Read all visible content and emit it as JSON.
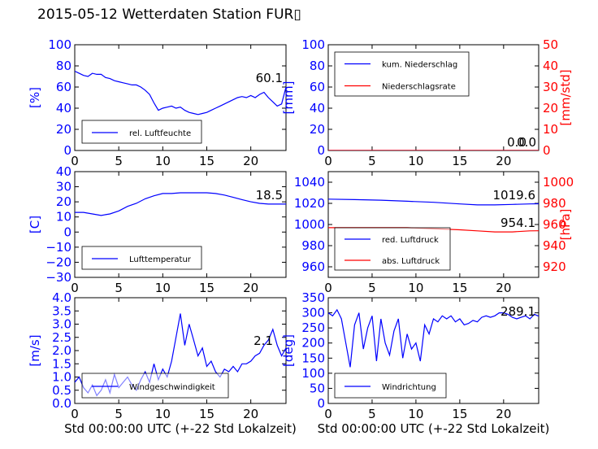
{
  "title": "2015-05-12 Wetterdaten Station FUR▯",
  "colors": {
    "blue": "#0000ff",
    "red": "#ff0000",
    "black": "#000000",
    "lightblue": "#8080ff"
  },
  "chart_data": [
    {
      "type": "line",
      "xlim": [
        0,
        24
      ],
      "x_ticks": [
        "0",
        "5",
        "10",
        "15",
        "20"
      ],
      "ylim": [
        0,
        100
      ],
      "y_ticks": [
        "0",
        "20",
        "40",
        "60",
        "80",
        "100"
      ],
      "ylabel": "[%]",
      "ylabel_color": "#0000ff",
      "series": [
        {
          "name": "rel. Luftfeuchte",
          "color": "#0000ff",
          "x": [
            0,
            0.5,
            1,
            1.5,
            2,
            2.5,
            3,
            3.5,
            4,
            4.5,
            5,
            5.5,
            6,
            6.5,
            7,
            7.5,
            8,
            8.5,
            9,
            9.5,
            10,
            10.5,
            11,
            11.5,
            12,
            12.5,
            13,
            13.5,
            14,
            14.5,
            15,
            15.5,
            16,
            16.5,
            17,
            17.5,
            18,
            18.5,
            19,
            19.5,
            20,
            20.5,
            21,
            21.5,
            22,
            22.5,
            23,
            23.5,
            24
          ],
          "y": [
            75,
            73,
            71,
            70,
            73,
            72,
            72,
            69,
            68,
            66,
            65,
            64,
            63,
            62,
            62,
            60,
            57,
            53,
            45,
            38,
            40,
            41,
            42,
            40,
            41,
            38,
            36,
            35,
            34,
            35,
            36,
            38,
            40,
            42,
            44,
            46,
            48,
            50,
            51,
            50,
            52,
            50,
            53,
            55,
            50,
            46,
            42,
            44,
            60
          ]
        }
      ],
      "legend": {
        "position": "lower-left"
      },
      "annotations": [
        "60.1"
      ]
    },
    {
      "type": "line",
      "xlim": [
        0,
        24
      ],
      "x_ticks": [
        "0",
        "5",
        "10",
        "15",
        "20"
      ],
      "ylim": [
        0,
        100
      ],
      "y_ticks": [
        "0",
        "20",
        "40",
        "60",
        "80",
        "100"
      ],
      "ylabel": "[mm]",
      "ylabel_color": "#0000ff",
      "y2lim": [
        0,
        50
      ],
      "y2_ticks": [
        "0",
        "10",
        "20",
        "30",
        "40",
        "50"
      ],
      "y2label": "[mm/std]",
      "y2label_color": "#ff0000",
      "series": [
        {
          "name": "kum. Niederschlag",
          "color": "#0000ff",
          "axis": "left",
          "x": [
            0,
            24
          ],
          "y": [
            0,
            0
          ]
        },
        {
          "name": "Niederschlagsrate",
          "color": "#ff0000",
          "axis": "right",
          "x": [
            0,
            24
          ],
          "y": [
            0,
            0
          ]
        }
      ],
      "legend": {
        "position": "upper-left"
      },
      "annotations": [
        "0.0",
        "0.0"
      ]
    },
    {
      "type": "line",
      "xlim": [
        0,
        24
      ],
      "x_ticks": [
        "0",
        "5",
        "10",
        "15",
        "20"
      ],
      "ylim": [
        -30,
        40
      ],
      "y_ticks": [
        "−30",
        "−20",
        "−10",
        "0",
        "10",
        "20",
        "30",
        "40"
      ],
      "ylabel": "[C]",
      "ylabel_color": "#0000ff",
      "series": [
        {
          "name": "Lufttemperatur",
          "color": "#0000ff",
          "x": [
            0,
            1,
            2,
            3,
            3.5,
            4,
            5,
            6,
            7,
            8,
            9,
            10,
            11,
            12,
            13,
            14,
            15,
            16,
            17,
            18,
            19,
            20,
            21,
            22,
            23,
            24
          ],
          "y": [
            13,
            13,
            12,
            11,
            11.5,
            12,
            14,
            17,
            19,
            22,
            24,
            25.5,
            25.5,
            26,
            26,
            26,
            26,
            25.5,
            24.5,
            23,
            21.5,
            20,
            19,
            18.5,
            18.5,
            18.5
          ]
        }
      ],
      "legend": {
        "position": "lower-left"
      },
      "annotations": [
        "18.5"
      ]
    },
    {
      "type": "line",
      "xlim": [
        0,
        24
      ],
      "x_ticks": [
        "0",
        "5",
        "10",
        "15",
        "20"
      ],
      "ylim": [
        950,
        1050
      ],
      "y_ticks": [
        "960",
        "980",
        "1000",
        "1020",
        "1040"
      ],
      "y2lim": [
        910,
        1010
      ],
      "y2_ticks": [
        "920",
        "940",
        "960",
        "980",
        "1000"
      ],
      "y2label": "[hPa]",
      "y2label_color": "#ff0000",
      "series": [
        {
          "name": "red. Luftdruck",
          "color": "#0000ff",
          "axis": "left",
          "x": [
            0,
            3,
            6,
            9,
            12,
            15,
            17,
            19,
            21,
            23,
            24
          ],
          "y": [
            1024,
            1023.5,
            1023,
            1022,
            1021,
            1019.5,
            1018.5,
            1018.5,
            1019,
            1019.5,
            1019.6
          ]
        },
        {
          "name": "abs. Luftdruck",
          "color": "#ff0000",
          "axis": "right",
          "x": [
            0,
            3,
            6,
            9,
            12,
            15,
            17,
            19,
            21,
            23,
            24
          ],
          "y": [
            957,
            957,
            957,
            957,
            956,
            955,
            954,
            953,
            953,
            954,
            954.1
          ]
        }
      ],
      "legend": {
        "position": "lower-left"
      },
      "annotations": [
        "1019.6",
        "954.1"
      ]
    },
    {
      "type": "line",
      "xlim": [
        0,
        24
      ],
      "x_ticks": [
        "0",
        "5",
        "10",
        "15",
        "20"
      ],
      "xlabel": "Std 00:00:00 UTC (+-22 Std Lokalzeit)",
      "ylim": [
        0,
        4.0
      ],
      "y_ticks": [
        "0.0",
        "0.5",
        "1.0",
        "1.5",
        "2.0",
        "2.5",
        "3.0",
        "3.5",
        "4.0"
      ],
      "ylabel": "[m/s]",
      "ylabel_color": "#0000ff",
      "series": [
        {
          "name": "Windgeschwindigkeit",
          "color": "#0000ff",
          "x": [
            0,
            0.5,
            1,
            1.5,
            2,
            2.5,
            3,
            3.5,
            4,
            4.5,
            5,
            5.5,
            6,
            6.5,
            7,
            7.5,
            8,
            8.5,
            9,
            9.5,
            10,
            10.5,
            11,
            11.5,
            12,
            12.5,
            13,
            13.5,
            14,
            14.5,
            15,
            15.5,
            16,
            16.5,
            17,
            17.5,
            18,
            18.5,
            19,
            19.5,
            20,
            20.5,
            21,
            21.5,
            22,
            22.5,
            23,
            23.5,
            24
          ],
          "y": [
            0.8,
            1.0,
            0.6,
            0.4,
            0.7,
            0.3,
            0.5,
            0.9,
            0.4,
            1.1,
            0.6,
            0.8,
            1.0,
            0.7,
            0.5,
            0.9,
            1.2,
            0.8,
            1.5,
            0.9,
            1.3,
            1.0,
            1.6,
            2.5,
            3.4,
            2.2,
            3.0,
            2.4,
            1.8,
            2.1,
            1.4,
            1.6,
            1.2,
            1.0,
            1.3,
            1.2,
            1.4,
            1.2,
            1.5,
            1.5,
            1.6,
            1.8,
            1.9,
            2.2,
            2.4,
            2.8,
            2.2,
            1.8,
            2.1
          ]
        }
      ],
      "legend": {
        "position": "lower-left"
      },
      "annotations": [
        "2.1"
      ]
    },
    {
      "type": "line",
      "xlim": [
        0,
        24
      ],
      "x_ticks": [
        "0",
        "5",
        "10",
        "15",
        "20"
      ],
      "xlabel": "Std 00:00:00 UTC (+-22 Std Lokalzeit)",
      "ylim": [
        0,
        350
      ],
      "y_ticks": [
        "0",
        "50",
        "100",
        "150",
        "200",
        "250",
        "300",
        "350"
      ],
      "ylabel": "[deg]",
      "ylabel_color": "#0000ff",
      "series": [
        {
          "name": "Windrichtung",
          "color": "#0000ff",
          "x": [
            0,
            0.5,
            1,
            1.5,
            2,
            2.5,
            3,
            3.5,
            4,
            4.5,
            5,
            5.5,
            6,
            6.5,
            7,
            7.5,
            8,
            8.5,
            9,
            9.5,
            10,
            10.5,
            11,
            11.5,
            12,
            12.5,
            13,
            13.5,
            14,
            14.5,
            15,
            15.5,
            16,
            16.5,
            17,
            17.5,
            18,
            18.5,
            19,
            19.5,
            20,
            20.5,
            21,
            21.5,
            22,
            22.5,
            23,
            23.5,
            24
          ],
          "y": [
            300,
            290,
            310,
            280,
            200,
            120,
            260,
            300,
            180,
            250,
            290,
            140,
            280,
            200,
            160,
            240,
            280,
            150,
            230,
            180,
            200,
            140,
            260,
            230,
            280,
            270,
            290,
            280,
            290,
            270,
            280,
            260,
            265,
            275,
            270,
            285,
            290,
            285,
            290,
            300,
            300,
            295,
            285,
            280,
            285,
            290,
            280,
            295,
            289
          ]
        }
      ],
      "legend": {
        "position": "lower-left"
      },
      "annotations": [
        "289.1"
      ]
    }
  ]
}
